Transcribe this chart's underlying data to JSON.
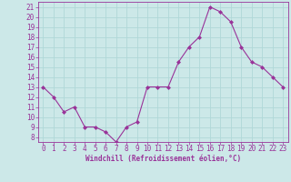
{
  "x": [
    0,
    1,
    2,
    3,
    4,
    5,
    6,
    7,
    8,
    9,
    10,
    11,
    12,
    13,
    14,
    15,
    16,
    17,
    18,
    19,
    20,
    21,
    22,
    23
  ],
  "y": [
    13,
    12,
    10.5,
    11,
    9,
    9,
    8.5,
    7.5,
    9,
    9.5,
    13,
    13,
    13,
    15.5,
    17,
    18,
    21,
    20.5,
    19.5,
    17,
    15.5,
    15,
    14,
    13
  ],
  "line_color": "#993399",
  "marker": "D",
  "marker_size": 2.0,
  "bg_color": "#cce8e8",
  "grid_color": "#b0d8d8",
  "xlabel": "Windchill (Refroidissement éolien,°C)",
  "xlabel_color": "#993399",
  "tick_color": "#993399",
  "label_fontsize": 5.5,
  "xlabel_fontsize": 5.5,
  "ylim": [
    7.5,
    21.5
  ],
  "yticks": [
    8,
    9,
    10,
    11,
    12,
    13,
    14,
    15,
    16,
    17,
    18,
    19,
    20,
    21
  ],
  "xlim": [
    -0.5,
    23.5
  ],
  "xticks": [
    0,
    1,
    2,
    3,
    4,
    5,
    6,
    7,
    8,
    9,
    10,
    11,
    12,
    13,
    14,
    15,
    16,
    17,
    18,
    19,
    20,
    21,
    22,
    23
  ]
}
